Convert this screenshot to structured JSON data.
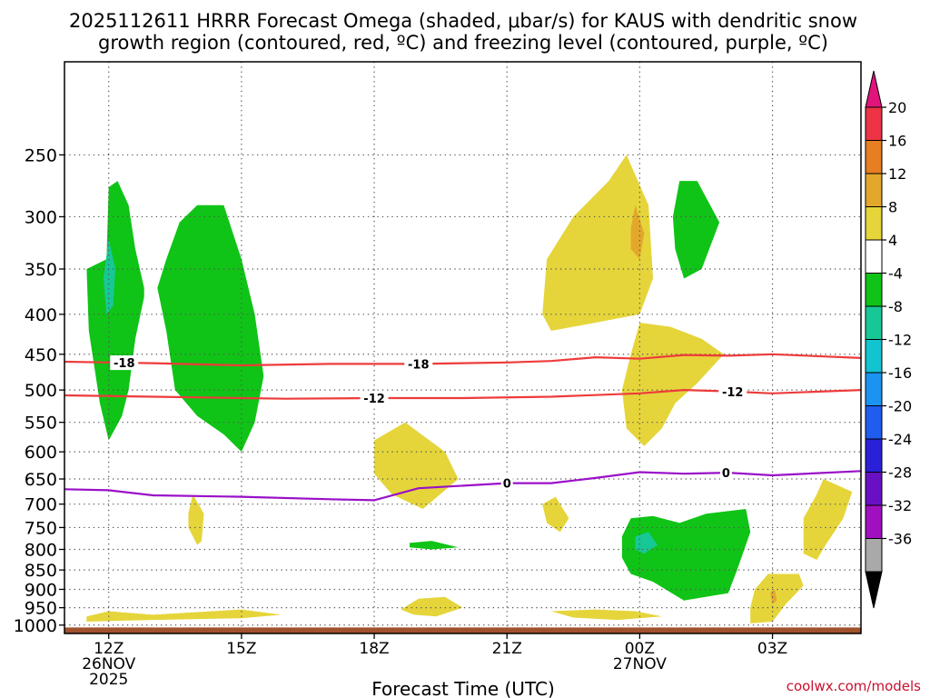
{
  "chart_data": {
    "type": "heatmap",
    "title_line1": "2025112611 HRRR Forecast Omega (shaded, μbar/s) for KAUS with dendritic snow",
    "title_line2": "growth region (contoured, red, ºC) and freezing level (contoured, purple, ºC)",
    "xlabel": "Forecast Time (UTC)",
    "credit": "coolwx.com/models",
    "x_ticks": [
      {
        "hour": 0,
        "label": "12Z",
        "sub1": "26NOV",
        "sub2": "2025"
      },
      {
        "hour": 3,
        "label": "15Z",
        "sub1": "",
        "sub2": ""
      },
      {
        "hour": 6,
        "label": "18Z",
        "sub1": "",
        "sub2": ""
      },
      {
        "hour": 9,
        "label": "21Z",
        "sub1": "",
        "sub2": ""
      },
      {
        "hour": 12,
        "label": "00Z",
        "sub1": "27NOV",
        "sub2": ""
      },
      {
        "hour": 15,
        "label": "03Z",
        "sub1": "",
        "sub2": ""
      }
    ],
    "x_range_hours": [
      -1,
      17
    ],
    "y_ticks": [
      250,
      300,
      350,
      400,
      450,
      500,
      550,
      600,
      650,
      700,
      750,
      800,
      850,
      900,
      950,
      1000
    ],
    "y_range_hPa": [
      190,
      1025
    ],
    "y_scale": "log",
    "ground_hPa": 1007,
    "ground_color": "#a0522d",
    "colorbar": {
      "labels": [
        "20",
        "16",
        "12",
        "8",
        "4",
        "-4",
        "-8",
        "-12",
        "-16",
        "-20",
        "-24",
        "-28",
        "-32",
        "-36"
      ],
      "colors": [
        "#ee3344",
        "#e67e22",
        "#e3a82b",
        "#e5d53a",
        "#ffffff",
        "#0fc416",
        "#17c897",
        "#12c3d0",
        "#1a94f0",
        "#1f5cf0",
        "#2a20d8",
        "#6a10c4",
        "#a010c0",
        "#a9a9a9"
      ],
      "top_arrow_color": "#e0147a",
      "bottom_arrow_color": "#000000"
    },
    "isotherms": [
      {
        "name": "-18",
        "color": "#ee3b3b",
        "points": [
          [
            -1,
            460
          ],
          [
            1,
            462
          ],
          [
            3,
            465
          ],
          [
            5,
            463
          ],
          [
            7,
            463
          ],
          [
            9,
            461
          ],
          [
            10,
            459
          ],
          [
            11,
            454
          ],
          [
            12,
            456
          ],
          [
            13,
            451
          ],
          [
            14,
            452
          ],
          [
            15,
            450
          ],
          [
            17,
            455
          ]
        ],
        "labels": [
          {
            "hour": 0.35,
            "text": "-18"
          },
          {
            "hour": 7,
            "text": "-18"
          }
        ]
      },
      {
        "name": "-12",
        "color": "#ee3b3b",
        "points": [
          [
            -1,
            508
          ],
          [
            1,
            510
          ],
          [
            3,
            512
          ],
          [
            4,
            513
          ],
          [
            6,
            512
          ],
          [
            8,
            512
          ],
          [
            10,
            510
          ],
          [
            12,
            505
          ],
          [
            13,
            500
          ],
          [
            14,
            502
          ],
          [
            15,
            505
          ],
          [
            17,
            500
          ]
        ],
        "labels": [
          {
            "hour": 6,
            "text": "-12"
          },
          {
            "hour": 14.1,
            "text": "-12"
          }
        ]
      },
      {
        "name": "0",
        "color": "#9a10c8",
        "points": [
          [
            -1,
            670
          ],
          [
            0,
            672
          ],
          [
            1,
            682
          ],
          [
            3,
            685
          ],
          [
            5,
            690
          ],
          [
            6,
            692
          ],
          [
            7,
            668
          ],
          [
            9,
            658
          ],
          [
            10,
            658
          ],
          [
            11,
            648
          ],
          [
            12,
            637
          ],
          [
            13,
            640
          ],
          [
            14,
            638
          ],
          [
            15,
            643
          ],
          [
            17,
            635
          ]
        ],
        "labels": [
          {
            "hour": 9,
            "text": "0"
          },
          {
            "hour": 13.95,
            "text": "0"
          }
        ]
      }
    ],
    "omega_regions": [
      {
        "level": "-4",
        "color": "#0fc416",
        "points": [
          [
            -0.05,
            340
          ],
          [
            0.0,
            275
          ],
          [
            0.2,
            270
          ],
          [
            0.45,
            290
          ],
          [
            0.6,
            330
          ],
          [
            0.8,
            370
          ],
          [
            0.8,
            380
          ],
          [
            0.6,
            430
          ],
          [
            0.45,
            500
          ],
          [
            0.3,
            540
          ],
          [
            0.0,
            580
          ],
          [
            -0.2,
            520
          ],
          [
            -0.45,
            420
          ],
          [
            -0.5,
            350
          ]
        ]
      },
      {
        "level": "-8",
        "color": "#17c897",
        "points": [
          [
            0.0,
            320
          ],
          [
            0.15,
            350
          ],
          [
            0.1,
            390
          ],
          [
            -0.05,
            400
          ],
          [
            -0.12,
            360
          ]
        ]
      },
      {
        "level": "-4",
        "color": "#0fc416",
        "points": [
          [
            1.3,
            340
          ],
          [
            1.6,
            305
          ],
          [
            2.0,
            290
          ],
          [
            2.6,
            290
          ],
          [
            3.0,
            340
          ],
          [
            3.3,
            400
          ],
          [
            3.5,
            480
          ],
          [
            3.3,
            550
          ],
          [
            3.0,
            600
          ],
          [
            2.6,
            570
          ],
          [
            2.0,
            540
          ],
          [
            1.5,
            500
          ],
          [
            1.3,
            420
          ],
          [
            1.1,
            370
          ]
        ]
      },
      {
        "level": "4",
        "color": "#e5d53a",
        "points": [
          [
            1.8,
            720
          ],
          [
            1.9,
            680
          ],
          [
            2.15,
            720
          ],
          [
            2.1,
            780
          ],
          [
            2.0,
            790
          ],
          [
            1.8,
            750
          ]
        ]
      },
      {
        "level": "4",
        "color": "#e5d53a",
        "points": [
          [
            -0.5,
            975
          ],
          [
            0.0,
            960
          ],
          [
            1.0,
            970
          ],
          [
            3.0,
            955
          ],
          [
            3.9,
            970
          ],
          [
            3.0,
            980
          ],
          [
            1.0,
            985
          ],
          [
            -0.5,
            990
          ]
        ]
      },
      {
        "level": "4",
        "color": "#e5d53a",
        "points": [
          [
            6.0,
            580
          ],
          [
            6.7,
            550
          ],
          [
            7.6,
            600
          ],
          [
            7.9,
            650
          ],
          [
            7.1,
            710
          ],
          [
            6.4,
            680
          ],
          [
            6.0,
            640
          ]
        ]
      },
      {
        "level": "-4",
        "color": "#0fc416",
        "points": [
          [
            6.8,
            785
          ],
          [
            7.3,
            780
          ],
          [
            7.9,
            795
          ],
          [
            7.3,
            800
          ],
          [
            6.8,
            795
          ]
        ]
      },
      {
        "level": "4",
        "color": "#e5d53a",
        "points": [
          [
            6.6,
            955
          ],
          [
            7.0,
            925
          ],
          [
            7.6,
            920
          ],
          [
            8.0,
            950
          ],
          [
            7.4,
            975
          ],
          [
            6.9,
            970
          ]
        ]
      },
      {
        "level": "4",
        "color": "#e5d53a",
        "points": [
          [
            9.8,
            700
          ],
          [
            10.1,
            685
          ],
          [
            10.4,
            730
          ],
          [
            10.2,
            760
          ],
          [
            9.9,
            740
          ]
        ]
      },
      {
        "level": "4",
        "color": "#e5d53a",
        "points": [
          [
            9.8,
            400
          ],
          [
            9.9,
            340
          ],
          [
            10.5,
            300
          ],
          [
            11.3,
            270
          ],
          [
            11.7,
            250
          ],
          [
            12.2,
            290
          ],
          [
            12.3,
            360
          ],
          [
            12.0,
            400
          ],
          [
            11.0,
            410
          ],
          [
            10.0,
            420
          ]
        ]
      },
      {
        "level": "8",
        "color": "#e3a82b",
        "points": [
          [
            11.8,
            310
          ],
          [
            11.9,
            290
          ],
          [
            12.1,
            315
          ],
          [
            12.0,
            340
          ],
          [
            11.8,
            330
          ]
        ]
      },
      {
        "level": "4",
        "color": "#e5d53a",
        "points": [
          [
            12.0,
            410
          ],
          [
            12.7,
            415
          ],
          [
            13.4,
            430
          ],
          [
            13.9,
            450
          ],
          [
            13.3,
            490
          ],
          [
            12.8,
            520
          ],
          [
            12.5,
            560
          ],
          [
            12.1,
            590
          ],
          [
            11.7,
            560
          ],
          [
            11.6,
            500
          ],
          [
            11.8,
            450
          ]
        ]
      },
      {
        "level": "-4",
        "color": "#0fc416",
        "points": [
          [
            12.75,
            300
          ],
          [
            12.9,
            270
          ],
          [
            13.3,
            270
          ],
          [
            13.8,
            305
          ],
          [
            13.4,
            350
          ],
          [
            13.0,
            360
          ],
          [
            12.8,
            330
          ]
        ]
      },
      {
        "level": "-4",
        "color": "#0fc416",
        "points": [
          [
            11.6,
            770
          ],
          [
            11.8,
            730
          ],
          [
            12.3,
            725
          ],
          [
            12.9,
            740
          ],
          [
            13.5,
            720
          ],
          [
            14.4,
            710
          ],
          [
            14.5,
            760
          ],
          [
            14.2,
            850
          ],
          [
            14.0,
            910
          ],
          [
            13.0,
            930
          ],
          [
            12.3,
            880
          ],
          [
            11.8,
            860
          ],
          [
            11.6,
            820
          ]
        ]
      },
      {
        "level": "-8",
        "color": "#17c897",
        "points": [
          [
            11.9,
            770
          ],
          [
            12.2,
            760
          ],
          [
            12.4,
            790
          ],
          [
            12.1,
            810
          ],
          [
            11.9,
            800
          ]
        ]
      },
      {
        "level": "4",
        "color": "#e5d53a",
        "points": [
          [
            10.0,
            960
          ],
          [
            11.0,
            955
          ],
          [
            11.9,
            960
          ],
          [
            12.5,
            975
          ],
          [
            11.5,
            985
          ],
          [
            10.5,
            978
          ]
        ]
      },
      {
        "level": "4",
        "color": "#e5d53a",
        "points": [
          [
            14.6,
            900
          ],
          [
            14.9,
            860
          ],
          [
            15.6,
            860
          ],
          [
            15.7,
            890
          ],
          [
            15.3,
            940
          ],
          [
            15.0,
            990
          ],
          [
            14.5,
            995
          ],
          [
            14.5,
            950
          ]
        ]
      },
      {
        "level": "8",
        "color": "#e3a82b",
        "points": [
          [
            14.95,
            910
          ],
          [
            15.05,
            900
          ],
          [
            15.1,
            930
          ],
          [
            15.0,
            940
          ]
        ]
      },
      {
        "level": "4",
        "color": "#e5d53a",
        "points": [
          [
            15.7,
            730
          ],
          [
            16.0,
            680
          ],
          [
            16.15,
            650
          ],
          [
            16.8,
            675
          ],
          [
            16.6,
            730
          ],
          [
            16.2,
            790
          ],
          [
            16.0,
            825
          ],
          [
            15.7,
            810
          ]
        ]
      }
    ]
  }
}
